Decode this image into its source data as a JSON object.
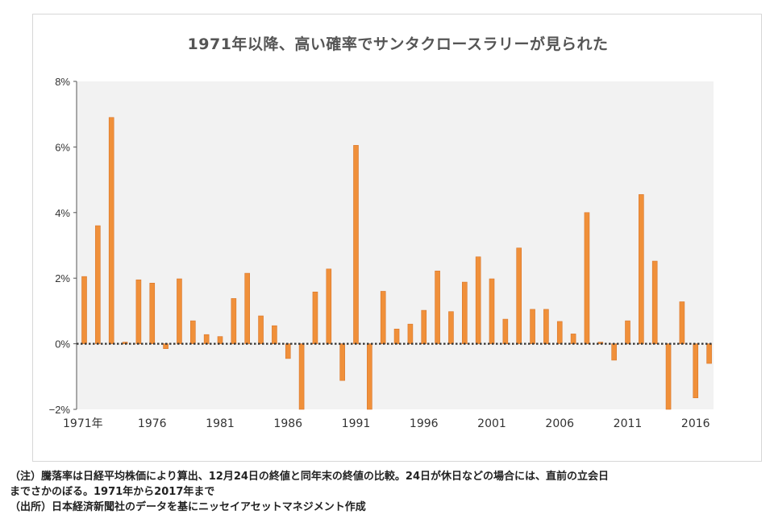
{
  "chart_data": {
    "type": "bar",
    "title": "1971年以降、高い確率でサンタクロースラリーが見られた",
    "xlabel": "",
    "ylabel": "",
    "ylim": [
      -2,
      8
    ],
    "yticks": [
      "8%",
      "6%",
      "4%",
      "2%",
      "0%",
      "−2%"
    ],
    "ytick_values": [
      8,
      6,
      4,
      2,
      0,
      -2
    ],
    "xtick_labels": [
      "1971年",
      "1976",
      "1981",
      "1986",
      "1991",
      "1996",
      "2001",
      "2006",
      "2011",
      "2016"
    ],
    "xtick_years": [
      1971,
      1976,
      1981,
      1986,
      1991,
      1996,
      2001,
      2006,
      2011,
      2016
    ],
    "series": [
      {
        "name": "騰落率",
        "color": "#f0903a",
        "x": [
          1971,
          1972,
          1973,
          1974,
          1975,
          1976,
          1977,
          1978,
          1979,
          1980,
          1981,
          1982,
          1983,
          1984,
          1985,
          1986,
          1987,
          1988,
          1989,
          1990,
          1991,
          1992,
          1993,
          1994,
          1995,
          1996,
          1997,
          1998,
          1999,
          2000,
          2001,
          2002,
          2003,
          2004,
          2005,
          2006,
          2007,
          2008,
          2009,
          2010,
          2011,
          2012,
          2013,
          2014,
          2015,
          2016,
          2017
        ],
        "values": [
          2.05,
          3.6,
          6.9,
          0.05,
          1.95,
          1.85,
          -0.15,
          1.98,
          0.7,
          0.28,
          0.22,
          1.38,
          2.15,
          0.85,
          0.55,
          -0.45,
          -2.1,
          1.58,
          2.28,
          -1.12,
          6.05,
          -2.1,
          1.6,
          0.45,
          0.6,
          1.02,
          2.22,
          0.98,
          1.88,
          2.65,
          1.98,
          0.75,
          2.92,
          1.05,
          1.05,
          0.68,
          0.3,
          4.0,
          0.05,
          -0.5,
          0.7,
          4.55,
          2.52,
          -2.1,
          1.28,
          -1.65,
          -0.6
        ]
      }
    ]
  },
  "colors": {
    "bar": "#f0903a",
    "bar_stroke": "#d9762a",
    "plot_bg": "#f2f2f2",
    "zero_line": "#333333"
  },
  "notes": {
    "line1": "（注）騰落率は日経平均株価により算出、12月24日の終値と同年末の終値の比較。24日が休日などの場合には、直前の立会日",
    "line2": "までさかのぼる。1971年から2017年まで",
    "line3": "（出所）日本経済新聞社のデータを基にニッセイアセットマネジメント作成"
  }
}
